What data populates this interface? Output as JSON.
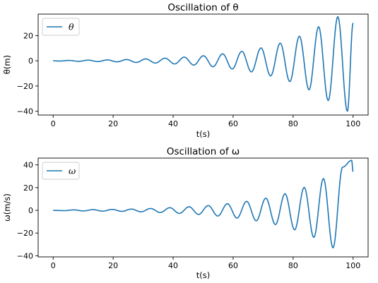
{
  "chart_data": [
    {
      "type": "line",
      "title": "Oscillation of θ",
      "xlabel": "t(s)",
      "ylabel": "θ(m)",
      "xlim": [
        -5,
        105
      ],
      "ylim": [
        -43,
        37
      ],
      "xticks": [
        0,
        20,
        40,
        60,
        80,
        100
      ],
      "yticks": [
        -40,
        -20,
        0,
        20
      ],
      "xtick_labels": [
        "0",
        "20",
        "40",
        "60",
        "80",
        "100"
      ],
      "ytick_labels": [
        "−40",
        "−20",
        "0",
        "20"
      ],
      "legend": "top-left",
      "grid": false,
      "color": "#1f77b4",
      "series": [
        {
          "name": "θ",
          "x": [
            0,
            2.1,
            5.3,
            8.5,
            11.7,
            14.9,
            18.1,
            21.3,
            24.5,
            27.7,
            30.9,
            34.1,
            37.3,
            40.5,
            43.7,
            46.9,
            50.1,
            53.3,
            56.5,
            59.7,
            62.9,
            66.1,
            69.3,
            72.5,
            75.7,
            78.9,
            82.1,
            85.3,
            88.5,
            91.7,
            94.9,
            98.1,
            100
          ],
          "y": [
            0,
            -0.2,
            0.3,
            -0.4,
            0.5,
            -0.6,
            0.7,
            -0.8,
            1.0,
            -1.3,
            1.5,
            -1.8,
            2.1,
            -2.5,
            2.9,
            -3.4,
            4.0,
            -4.7,
            5.5,
            -6.5,
            7.5,
            -8.8,
            10.2,
            -12.0,
            14.0,
            -16.5,
            19.5,
            -23.0,
            27.0,
            -31.5,
            35.0,
            -40.0,
            30.0
          ]
        }
      ]
    },
    {
      "type": "line",
      "title": "Oscillation of ω",
      "xlabel": "t(s)",
      "ylabel": "ω(m/s)",
      "xlim": [
        -5,
        105
      ],
      "ylim": [
        -41,
        46
      ],
      "xticks": [
        0,
        20,
        40,
        60,
        80,
        100
      ],
      "yticks": [
        -40,
        -20,
        0,
        20,
        40
      ],
      "xtick_labels": [
        "0",
        "20",
        "40",
        "60",
        "80",
        "100"
      ],
      "ytick_labels": [
        "−40",
        "−20",
        "0",
        "20",
        "40"
      ],
      "legend": "top-left",
      "grid": false,
      "color": "#1f77b4",
      "series": [
        {
          "name": "ω",
          "x": [
            0,
            1.0,
            3.7,
            6.9,
            10.1,
            13.3,
            16.5,
            19.7,
            22.9,
            26.1,
            29.3,
            32.5,
            35.7,
            38.9,
            42.1,
            45.3,
            48.5,
            51.7,
            54.9,
            58.1,
            61.3,
            64.5,
            67.7,
            70.9,
            74.1,
            77.3,
            80.5,
            83.7,
            86.9,
            90.1,
            93.3,
            96.5,
            99.5,
            100
          ],
          "y": [
            0,
            -0.1,
            -0.3,
            0.4,
            -0.5,
            0.6,
            -0.7,
            0.8,
            -0.9,
            1.1,
            -1.3,
            1.6,
            -1.9,
            2.3,
            -2.7,
            3.1,
            -3.6,
            4.2,
            -5.0,
            5.8,
            -6.8,
            7.9,
            -9.2,
            10.7,
            -12.5,
            14.6,
            -17.2,
            20.2,
            -23.8,
            28.0,
            -33.0,
            38.0,
            44.0,
            34.0
          ]
        }
      ]
    }
  ]
}
